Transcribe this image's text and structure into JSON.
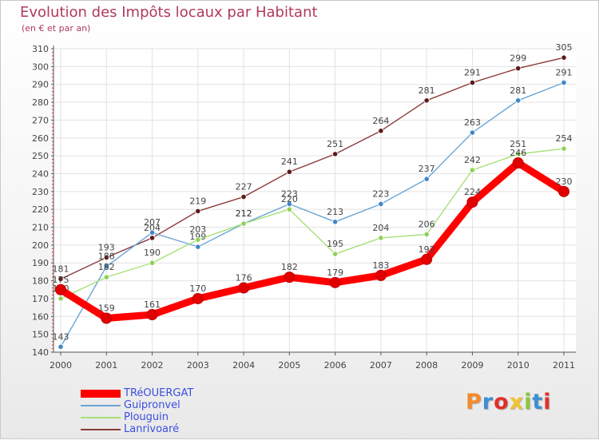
{
  "title": "Evolution des Impôts locaux par Habitant",
  "subtitle": "(en € et par an)",
  "brand": "Proxiti",
  "brand_colors": [
    "#f28c28",
    "#3d8fd1",
    "#e0302a",
    "#f2c230",
    "#8cc63f",
    "#3d8fd1",
    "#e0302a"
  ],
  "chart_data": {
    "type": "line",
    "title": "Evolution des Impôts locaux par Habitant",
    "subtitle": "(en € et par an)",
    "xlabel": "",
    "ylabel": "",
    "x": [
      "2000",
      "2001",
      "2002",
      "2003",
      "2004",
      "2005",
      "2006",
      "2007",
      "2008",
      "2009",
      "2010",
      "2011"
    ],
    "ylim": [
      140,
      310
    ],
    "yticks": [
      140,
      150,
      160,
      170,
      180,
      190,
      200,
      210,
      220,
      230,
      240,
      250,
      260,
      270,
      280,
      290,
      300,
      310
    ],
    "grid": true,
    "legend": "bottom-left",
    "series": [
      {
        "name": "TRéOUERGAT",
        "values": [
          175,
          159,
          161,
          170,
          176,
          182,
          179,
          183,
          192,
          224,
          246,
          230
        ],
        "color": "#ff0000",
        "marker": "#e00000",
        "emphasis": true
      },
      {
        "name": "Guipronvel",
        "values": [
          143,
          188,
          207,
          199,
          212,
          223,
          213,
          223,
          237,
          263,
          281,
          291
        ],
        "color": "#6aa5d5",
        "marker": "#3f86c9",
        "emphasis": false
      },
      {
        "name": "Plouguin",
        "values": [
          170,
          182,
          190,
          203,
          212,
          220,
          195,
          204,
          206,
          242,
          251,
          254
        ],
        "color": "#a6e07a",
        "marker": "#8fd155",
        "emphasis": false
      },
      {
        "name": "Lanrivoaré",
        "values": [
          181,
          193,
          204,
          219,
          227,
          241,
          251,
          264,
          281,
          291,
          299,
          305
        ],
        "color": "#8b3a3a",
        "marker": "#5c1a1a",
        "emphasis": false
      }
    ]
  }
}
